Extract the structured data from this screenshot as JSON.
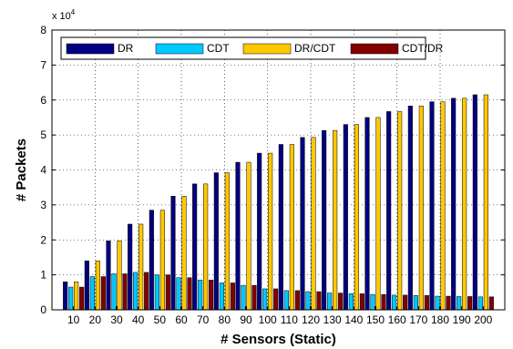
{
  "chart_data": {
    "type": "bar",
    "xlabel": "# Sensors (Static)",
    "ylabel": "# Packets",
    "y_multiplier": {
      "base": "x 10",
      "exponent": "4"
    },
    "ylim": [
      0,
      8
    ],
    "yticks": [
      0,
      1,
      2,
      3,
      4,
      5,
      6,
      7,
      8
    ],
    "grid": true,
    "legend_position": "top-left",
    "categories": [
      "10",
      "20",
      "30",
      "40",
      "50",
      "60",
      "70",
      "80",
      "90",
      "100",
      "110",
      "120",
      "130",
      "140",
      "150",
      "160",
      "170",
      "180",
      "190",
      "200"
    ],
    "series": [
      {
        "name": "DR",
        "color": "#000080",
        "values": [
          0.8,
          1.4,
          1.97,
          2.45,
          2.85,
          3.25,
          3.6,
          3.92,
          4.22,
          4.48,
          4.73,
          4.93,
          5.13,
          5.3,
          5.5,
          5.67,
          5.83,
          5.95,
          6.05,
          6.15
        ]
      },
      {
        "name": "CDT",
        "color": "#00c8ff",
        "values": [
          0.65,
          0.95,
          1.03,
          1.07,
          1.0,
          0.92,
          0.85,
          0.77,
          0.7,
          0.6,
          0.55,
          0.52,
          0.48,
          0.46,
          0.44,
          0.42,
          0.41,
          0.39,
          0.38,
          0.37
        ]
      },
      {
        "name": "DR/CDT",
        "color": "#ffc800",
        "values": [
          0.8,
          1.4,
          1.97,
          2.45,
          2.85,
          3.25,
          3.6,
          3.92,
          4.22,
          4.48,
          4.73,
          4.93,
          5.13,
          5.3,
          5.5,
          5.67,
          5.83,
          5.95,
          6.05,
          6.15
        ]
      },
      {
        "name": "CDT/DR",
        "color": "#800000",
        "values": [
          0.65,
          0.95,
          1.03,
          1.07,
          1.0,
          0.92,
          0.85,
          0.77,
          0.7,
          0.6,
          0.55,
          0.52,
          0.48,
          0.46,
          0.44,
          0.42,
          0.41,
          0.39,
          0.38,
          0.37
        ]
      }
    ]
  }
}
